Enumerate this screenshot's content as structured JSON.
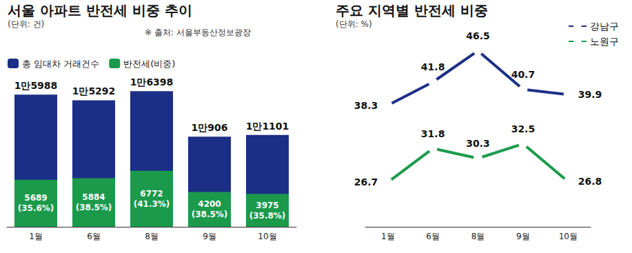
{
  "chart_data": [
    {
      "type": "bar",
      "title": "서울 아파트 반전세 비중 추이",
      "subtitle": "(단위: 건)",
      "annotations": [
        "※ 출처: 서울부동산정보광장"
      ],
      "categories": [
        "1월",
        "6월",
        "8월",
        "9월",
        "10월"
      ],
      "series": [
        {
          "name": "총 임대차 거래건수",
          "color": "#1c2f86",
          "values": [
            15988,
            15292,
            16398,
            10906,
            11101
          ],
          "value_labels": [
            "1만5988",
            "1만5292",
            "1만6398",
            "1만906",
            "1만1101"
          ]
        },
        {
          "name": "반전세(비중)",
          "color": "#1b9a4b",
          "values": [
            5689,
            5884,
            6772,
            4200,
            3975
          ],
          "value_labels": [
            "5689\n(35.6%)",
            "5884\n(38.5%)",
            "6772\n(41.3%)",
            "4200\n(38.5%)",
            "3975\n(35.8%)"
          ]
        }
      ],
      "ylim": [
        0,
        22000
      ],
      "legend": "top-left",
      "data_labels": true,
      "tick_labels": "x",
      "grid": false
    },
    {
      "type": "line",
      "title": "주요 지역별 반전세 비중",
      "subtitle": "(단위: %)",
      "categories": [
        "1월",
        "6월",
        "8월",
        "9월",
        "10월"
      ],
      "series": [
        {
          "name": "강남구",
          "color": "#1c2f86",
          "marker": "hollow-circle",
          "values": [
            38.3,
            41.8,
            46.5,
            40.7,
            39.9
          ]
        },
        {
          "name": "노원구",
          "color": "#1b9a4b",
          "marker": "hollow-circle",
          "values": [
            26.7,
            31.8,
            30.3,
            32.5,
            26.8
          ]
        }
      ],
      "ylim": [
        20,
        50
      ],
      "legend": "top-right",
      "data_labels": true,
      "tick_labels": "x",
      "grid": false
    }
  ]
}
